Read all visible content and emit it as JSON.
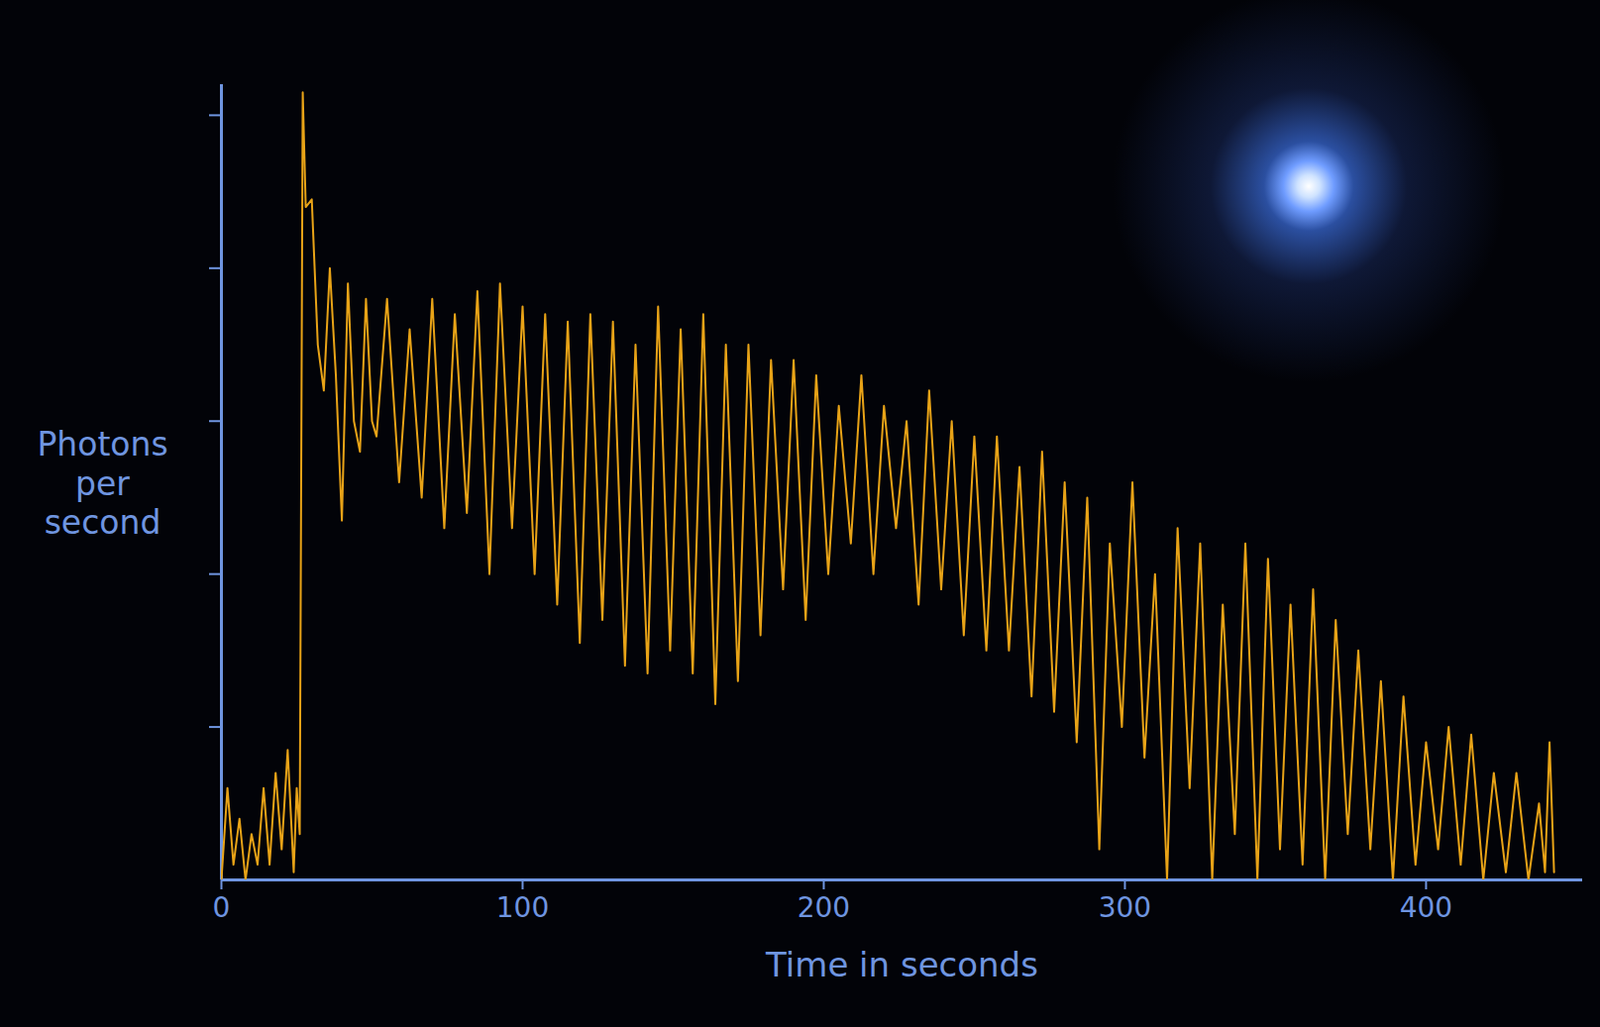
{
  "chart_data": {
    "type": "line",
    "x_label": "Time in seconds",
    "y_label": "Photons per second",
    "color": "#e8a317",
    "xlim": [
      0,
      452
    ],
    "xticks": [
      0,
      100,
      200,
      300,
      400
    ],
    "ylim": [
      0,
      5.2
    ],
    "yticks": [
      1,
      2,
      3,
      4,
      5
    ],
    "tick_labels": "x",
    "x": [
      0,
      2,
      4,
      6,
      8,
      10,
      12,
      14,
      16,
      18,
      20,
      22,
      24,
      25,
      26,
      27,
      28,
      30,
      32,
      34,
      36,
      38,
      40,
      42,
      44,
      46,
      48,
      50,
      51.5,
      55,
      59,
      62.5,
      66.5,
      70,
      74,
      77.5,
      81.5,
      85,
      89,
      92.5,
      96.5,
      100,
      104,
      107.5,
      111.5,
      115,
      119,
      122.5,
      126.5,
      130,
      134,
      137.5,
      141.5,
      145,
      149,
      152.5,
      156.5,
      160,
      164,
      167.5,
      171.5,
      175,
      179,
      182.5,
      186.5,
      190,
      194,
      197.5,
      201.5,
      205,
      209,
      212.5,
      216.5,
      220,
      224,
      227.5,
      231.5,
      235,
      239,
      242.5,
      246.5,
      250,
      254,
      257.5,
      261.5,
      265,
      269,
      272.5,
      276.5,
      280,
      284,
      287.5,
      291.5,
      295,
      299,
      302.5,
      306.5,
      310,
      314,
      317.5,
      321.5,
      325,
      329,
      332.5,
      336.5,
      340,
      344,
      347.5,
      351.5,
      355,
      359,
      362.5,
      366.5,
      370,
      374,
      377.5,
      381.5,
      385,
      389,
      392.5,
      396.5,
      400,
      404,
      407.5,
      411.5,
      415,
      419,
      422.5,
      426.5,
      430,
      434,
      437.5,
      439.5,
      441,
      442.5
    ],
    "values": [
      0,
      0.6,
      0.1,
      0.4,
      0,
      0.3,
      0.1,
      0.6,
      0.1,
      0.7,
      0.2,
      0.85,
      0.05,
      0.6,
      0.3,
      5.15,
      4.4,
      4.45,
      3.5,
      3.2,
      4.0,
      3.3,
      2.35,
      3.9,
      3.0,
      2.8,
      3.8,
      3.0,
      2.9,
      3.8,
      2.6,
      3.6,
      2.5,
      3.8,
      2.3,
      3.7,
      2.4,
      3.85,
      2.0,
      3.9,
      2.3,
      3.75,
      2.0,
      3.7,
      1.8,
      3.65,
      1.55,
      3.7,
      1.7,
      3.65,
      1.4,
      3.5,
      1.35,
      3.75,
      1.5,
      3.6,
      1.35,
      3.7,
      1.15,
      3.5,
      1.3,
      3.5,
      1.6,
      3.4,
      1.9,
      3.4,
      1.7,
      3.3,
      2.0,
      3.1,
      2.2,
      3.3,
      2.0,
      3.1,
      2.3,
      3.0,
      1.8,
      3.2,
      1.9,
      3.0,
      1.6,
      2.9,
      1.5,
      2.9,
      1.5,
      2.7,
      1.2,
      2.8,
      1.1,
      2.6,
      0.9,
      2.5,
      0.2,
      2.2,
      1.0,
      2.6,
      0.8,
      2.0,
      0.0,
      2.3,
      0.6,
      2.2,
      0.0,
      1.8,
      0.3,
      2.2,
      0.0,
      2.1,
      0.2,
      1.8,
      0.1,
      1.9,
      0.0,
      1.7,
      0.3,
      1.5,
      0.2,
      1.3,
      0.0,
      1.2,
      0.1,
      0.9,
      0.2,
      1.0,
      0.1,
      0.95,
      0.0,
      0.7,
      0.05,
      0.7,
      0.0,
      0.5,
      0.05,
      0.9,
      0.05
    ]
  }
}
